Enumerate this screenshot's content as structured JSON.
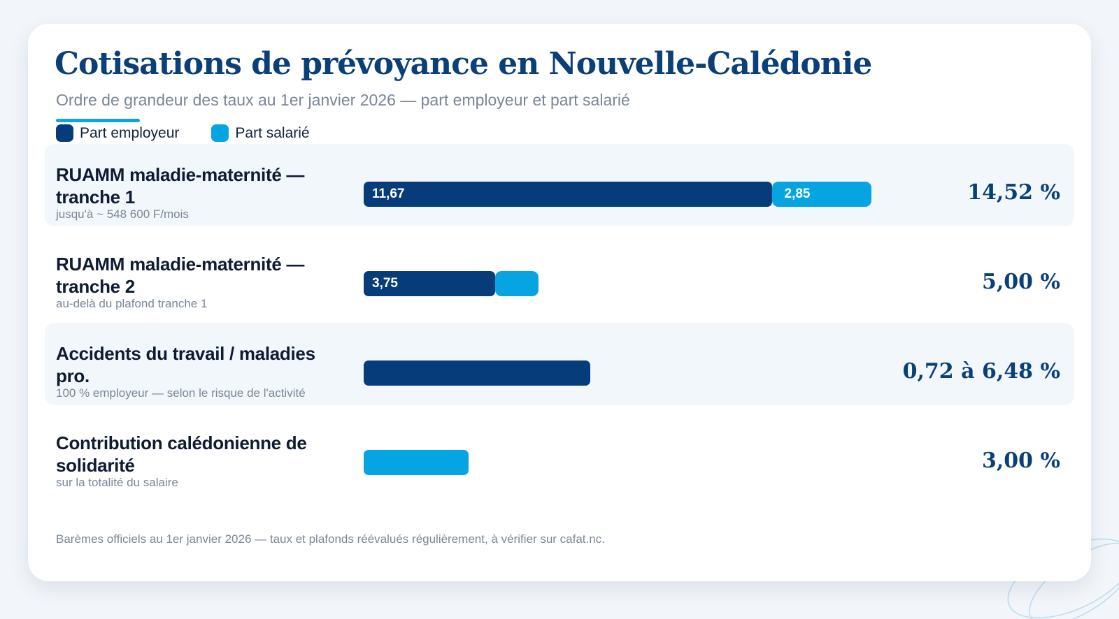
{
  "colors": {
    "employer": "#063c7a",
    "employee": "#06a5e1",
    "title": "#0b3f78",
    "accent": "#0aa6e0"
  },
  "header": {
    "title": "Cotisations de prévoyance en Nouvelle-Calédonie",
    "subtitle": "Ordre de grandeur des taux au 1er janvier 2026 — part employeur et part salarié"
  },
  "legend": [
    {
      "label": "Part employeur",
      "color": "#063c7a"
    },
    {
      "label": "Part salarié",
      "color": "#06a5e1"
    }
  ],
  "chart_data": {
    "type": "bar",
    "orientation": "horizontal",
    "stacked": true,
    "title": "Cotisations de prévoyance en Nouvelle-Calédonie",
    "subtitle": "Ordre de grandeur des taux au 1er janvier 2026 — part employeur et part salarié",
    "xlim": [
      0,
      18
    ],
    "unit": "%",
    "legend_position": "top-left",
    "categories": [
      "RUAMM maladie-maternité — tranche 1",
      "RUAMM maladie-maternité — tranche 2",
      "Accidents du travail / maladies pro.",
      "Contribution calédonienne de solidarité"
    ],
    "series": [
      {
        "name": "Part employeur",
        "values": [
          11.67,
          3.75,
          6.48,
          0
        ]
      },
      {
        "name": "Part salarié",
        "values": [
          2.85,
          1.25,
          0,
          3.0
        ]
      }
    ],
    "rows": [
      {
        "label": "RUAMM maladie-maternité — tranche 1",
        "note": "jusqu'à ~ 548 600 F/mois",
        "employer": 11.67,
        "employee": 2.85,
        "employer_label": "11,67",
        "employee_label": "2,85",
        "total": "14,52 %"
      },
      {
        "label": "RUAMM maladie-maternité — tranche 2",
        "note": "au-delà du plafond tranche 1",
        "employer": 3.75,
        "employee": 1.25,
        "employer_label": "3,75",
        "employee_label": "",
        "total": "5,00 %"
      },
      {
        "label": "Accidents du travail / maladies pro.",
        "note": "100 % employeur — selon le risque de l'activité",
        "employer": 6.48,
        "employee": 0,
        "employer_label": "",
        "employee_label": "",
        "total": "0,72 à 6,48 %"
      },
      {
        "label": "Contribution calédonienne de solidarité",
        "note": "sur la totalité du salaire",
        "employer": 0,
        "employee": 3.0,
        "employer_label": "",
        "employee_label": "",
        "total": "3,00 %"
      }
    ]
  },
  "footnote": "Barèmes officiels au 1er janvier 2026 — taux et plafonds réévalués régulièrement, à vérifier sur cafat.nc."
}
